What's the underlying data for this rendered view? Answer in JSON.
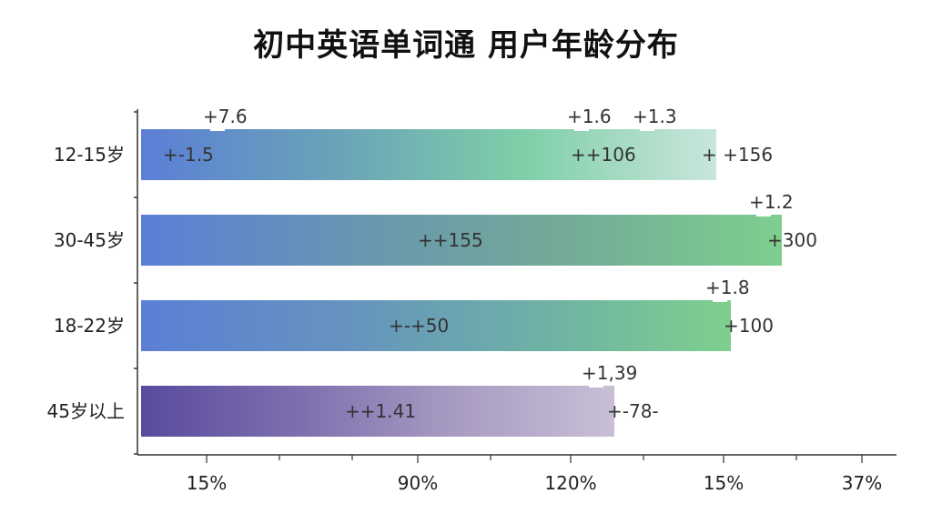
{
  "chart_data": {
    "type": "bar",
    "orientation": "horizontal",
    "title": "初中英语单词通 用户年龄分布",
    "categories": [
      "12-15岁",
      "30-45岁",
      "18-22岁",
      "45岁以上"
    ],
    "x_tick_labels": [
      "15%",
      "90%",
      "120%",
      "15%",
      "37%"
    ],
    "grid": false,
    "legend": "none",
    "bars": [
      {
        "category": "12-15岁",
        "extent": 0.79,
        "colors": [
          "#5b7fd6",
          "#6aa2b8",
          "#7fcfa8",
          "#c9e6dc"
        ],
        "annotations": [
          {
            "text": "+7.6",
            "pos": 0.09,
            "row": "above"
          },
          {
            "text": "+1.6",
            "pos": 0.59,
            "row": "above"
          },
          {
            "text": "+1.3",
            "pos": 0.68,
            "row": "above"
          },
          {
            "text": "+-1.5",
            "pos": 0.03,
            "row": "inside"
          },
          {
            "text": "++106",
            "pos": 0.59,
            "row": "inside"
          },
          {
            "text": "+ +156",
            "pos": 0.77,
            "row": "inside"
          }
        ]
      },
      {
        "category": "30-45岁",
        "extent": 0.88,
        "colors": [
          "#5b7fd6",
          "#6895b0",
          "#73ab97",
          "#7ecf8f"
        ],
        "annotations": [
          {
            "text": "+1.2",
            "pos": 0.84,
            "row": "above"
          },
          {
            "text": "++155",
            "pos": 0.38,
            "row": "inside"
          },
          {
            "text": "+300",
            "pos": 0.86,
            "row": "inside"
          }
        ]
      },
      {
        "category": "18-22岁",
        "extent": 0.81,
        "colors": [
          "#5b7fd6",
          "#6592c0",
          "#6eb0a6",
          "#7ecf8f"
        ],
        "annotations": [
          {
            "text": "+1.8",
            "pos": 0.78,
            "row": "above"
          },
          {
            "text": "+-+50",
            "pos": 0.34,
            "row": "inside"
          },
          {
            "text": "+100",
            "pos": 0.8,
            "row": "inside"
          }
        ]
      },
      {
        "category": "45岁以上",
        "extent": 0.65,
        "colors": [
          "#5a4a9e",
          "#7d6fae",
          "#a99cc2",
          "#c8bfd6"
        ],
        "annotations": [
          {
            "text": "+1,39",
            "pos": 0.61,
            "row": "above"
          },
          {
            "text": "++1.41",
            "pos": 0.28,
            "row": "inside"
          },
          {
            "text": "+-78-",
            "pos": 0.64,
            "row": "inside"
          }
        ]
      }
    ]
  }
}
